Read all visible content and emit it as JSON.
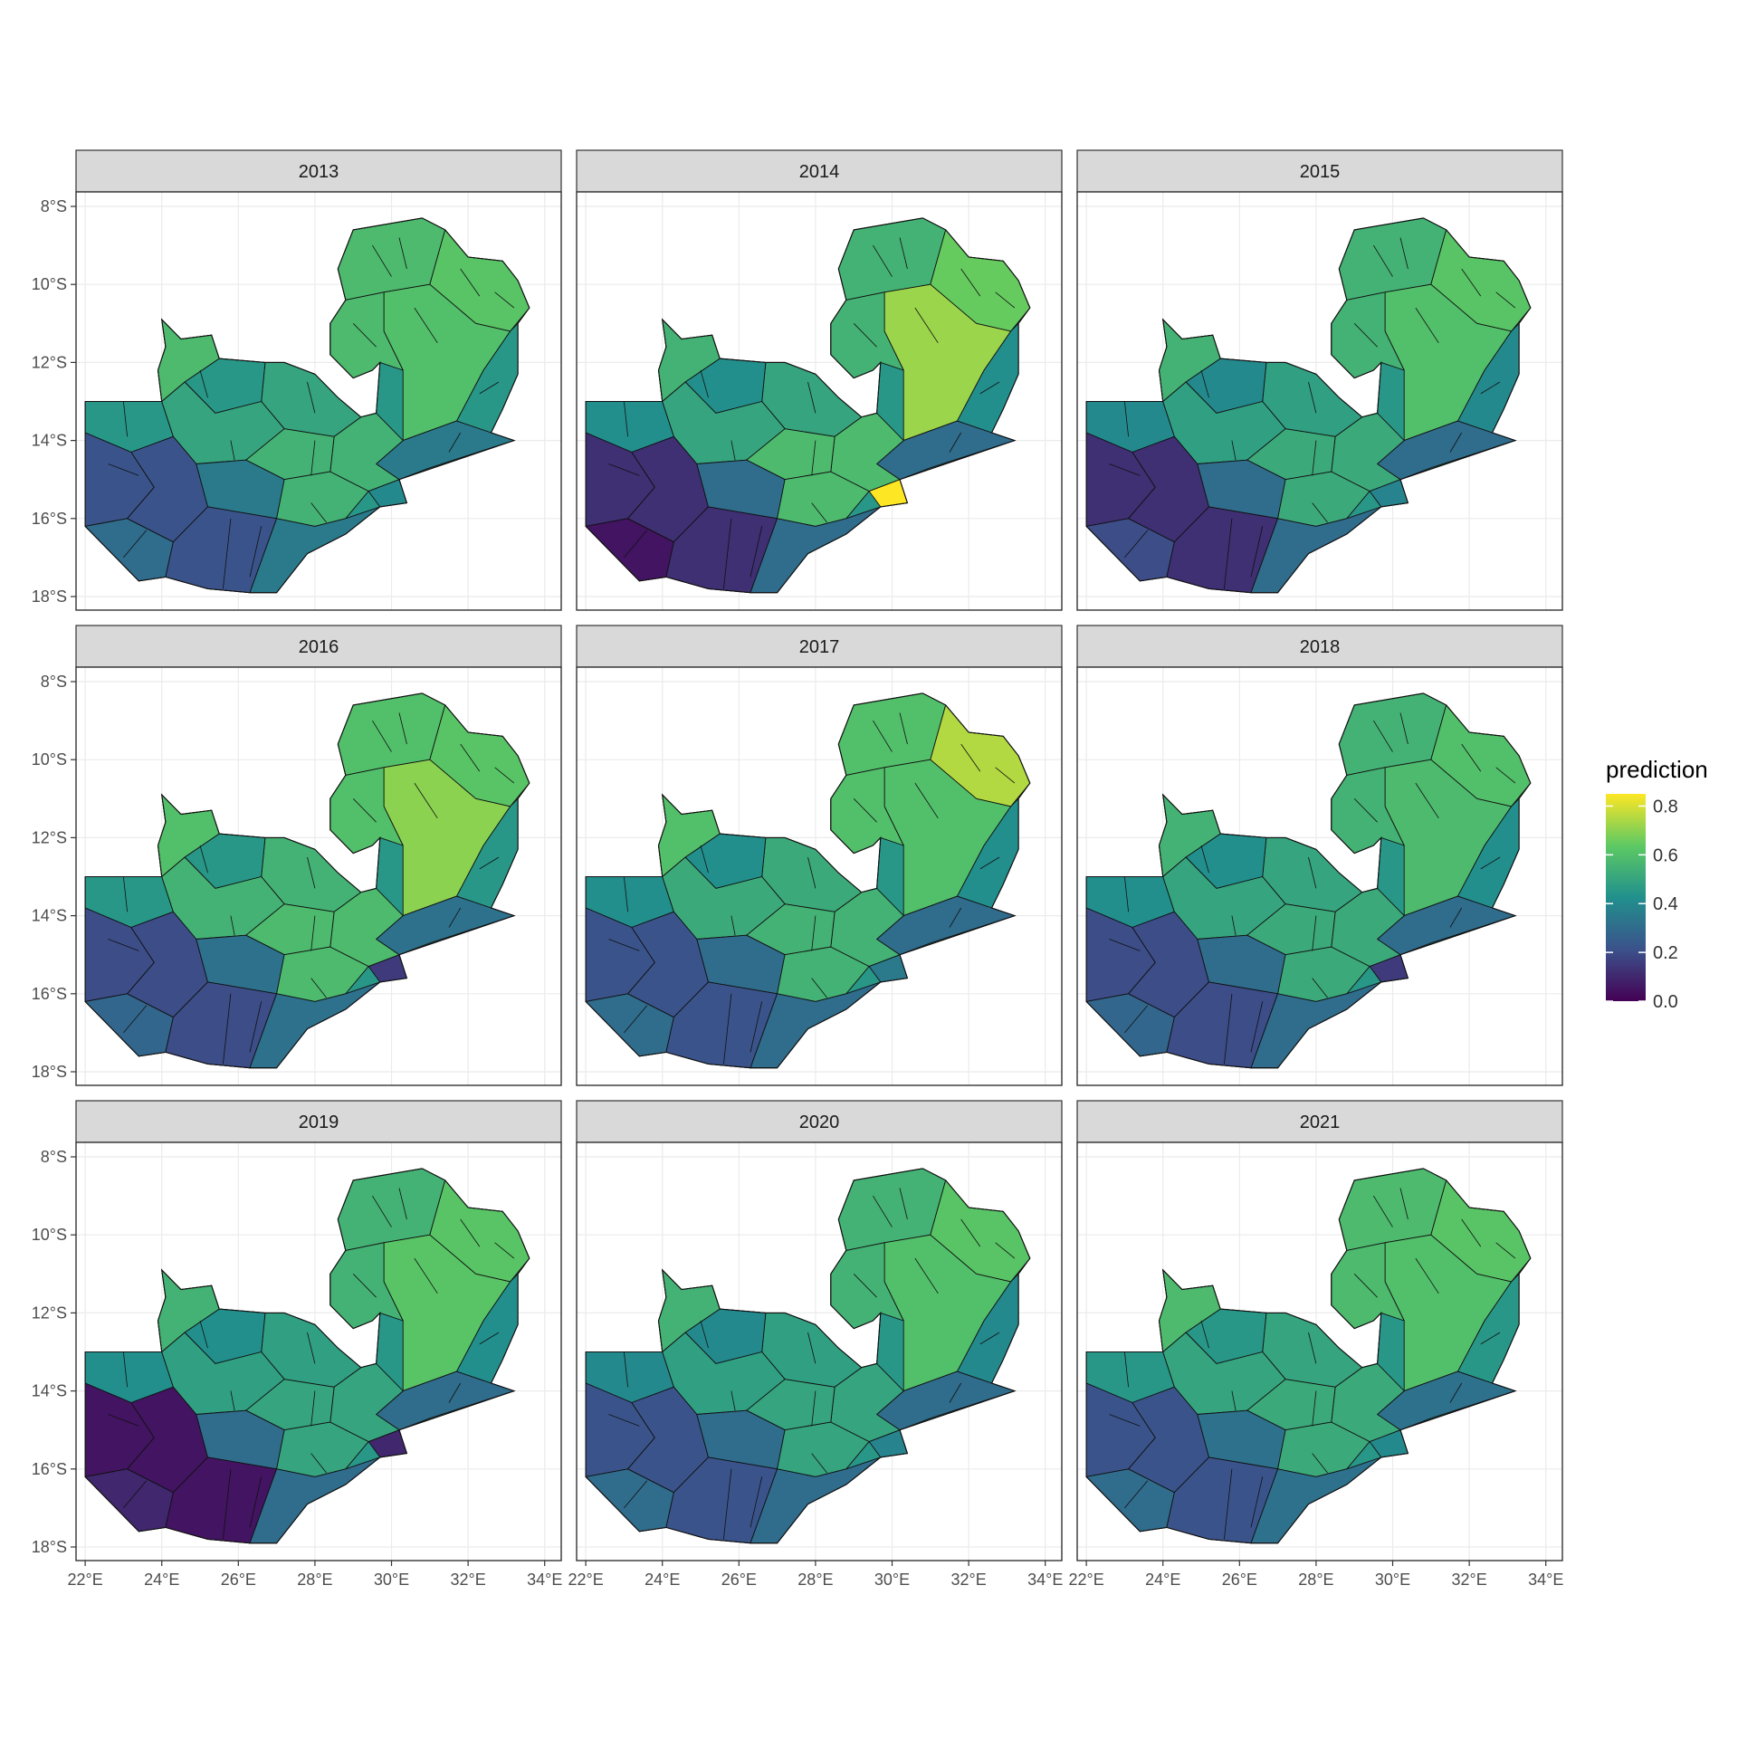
{
  "legend": {
    "title": "prediction",
    "ticks": [
      "0.0",
      "0.2",
      "0.4",
      "0.6",
      "0.8"
    ],
    "range": [
      0.0,
      0.85
    ],
    "colorscale": [
      "#440154",
      "#3b528b",
      "#21908d",
      "#5dc963",
      "#fde725"
    ]
  },
  "axes": {
    "x_ticks": [
      "22°E",
      "24°E",
      "26°E",
      "28°E",
      "30°E",
      "32°E",
      "34°E"
    ],
    "y_ticks": [
      "8°S",
      "10°S",
      "12°S",
      "14°S",
      "16°S",
      "18°S"
    ]
  },
  "panels": [
    {
      "label": "2013",
      "palette": [
        0.58,
        0.62,
        0.45,
        0.35,
        0.55,
        0.22,
        0.3,
        0.5,
        0.6,
        0.4
      ]
    },
    {
      "label": "2014",
      "palette": [
        0.55,
        0.65,
        0.42,
        0.3,
        0.58,
        0.12,
        0.05,
        0.5,
        0.72,
        0.85
      ]
    },
    {
      "label": "2015",
      "palette": [
        0.55,
        0.62,
        0.4,
        0.3,
        0.52,
        0.12,
        0.2,
        0.48,
        0.6,
        0.38
      ]
    },
    {
      "label": "2016",
      "palette": [
        0.6,
        0.62,
        0.45,
        0.32,
        0.58,
        0.2,
        0.28,
        0.55,
        0.7,
        0.15
      ]
    },
    {
      "label": "2017",
      "palette": [
        0.6,
        0.75,
        0.42,
        0.3,
        0.55,
        0.22,
        0.3,
        0.52,
        0.6,
        0.35
      ]
    },
    {
      "label": "2018",
      "palette": [
        0.55,
        0.6,
        0.42,
        0.3,
        0.52,
        0.2,
        0.28,
        0.5,
        0.58,
        0.15
      ]
    },
    {
      "label": "2019",
      "palette": [
        0.55,
        0.62,
        0.42,
        0.3,
        0.5,
        0.05,
        0.1,
        0.48,
        0.62,
        0.1
      ]
    },
    {
      "label": "2020",
      "palette": [
        0.55,
        0.62,
        0.4,
        0.3,
        0.5,
        0.22,
        0.3,
        0.48,
        0.6,
        0.38
      ]
    },
    {
      "label": "2021",
      "palette": [
        0.58,
        0.62,
        0.45,
        0.32,
        0.52,
        0.22,
        0.3,
        0.5,
        0.6,
        0.4
      ]
    }
  ]
}
